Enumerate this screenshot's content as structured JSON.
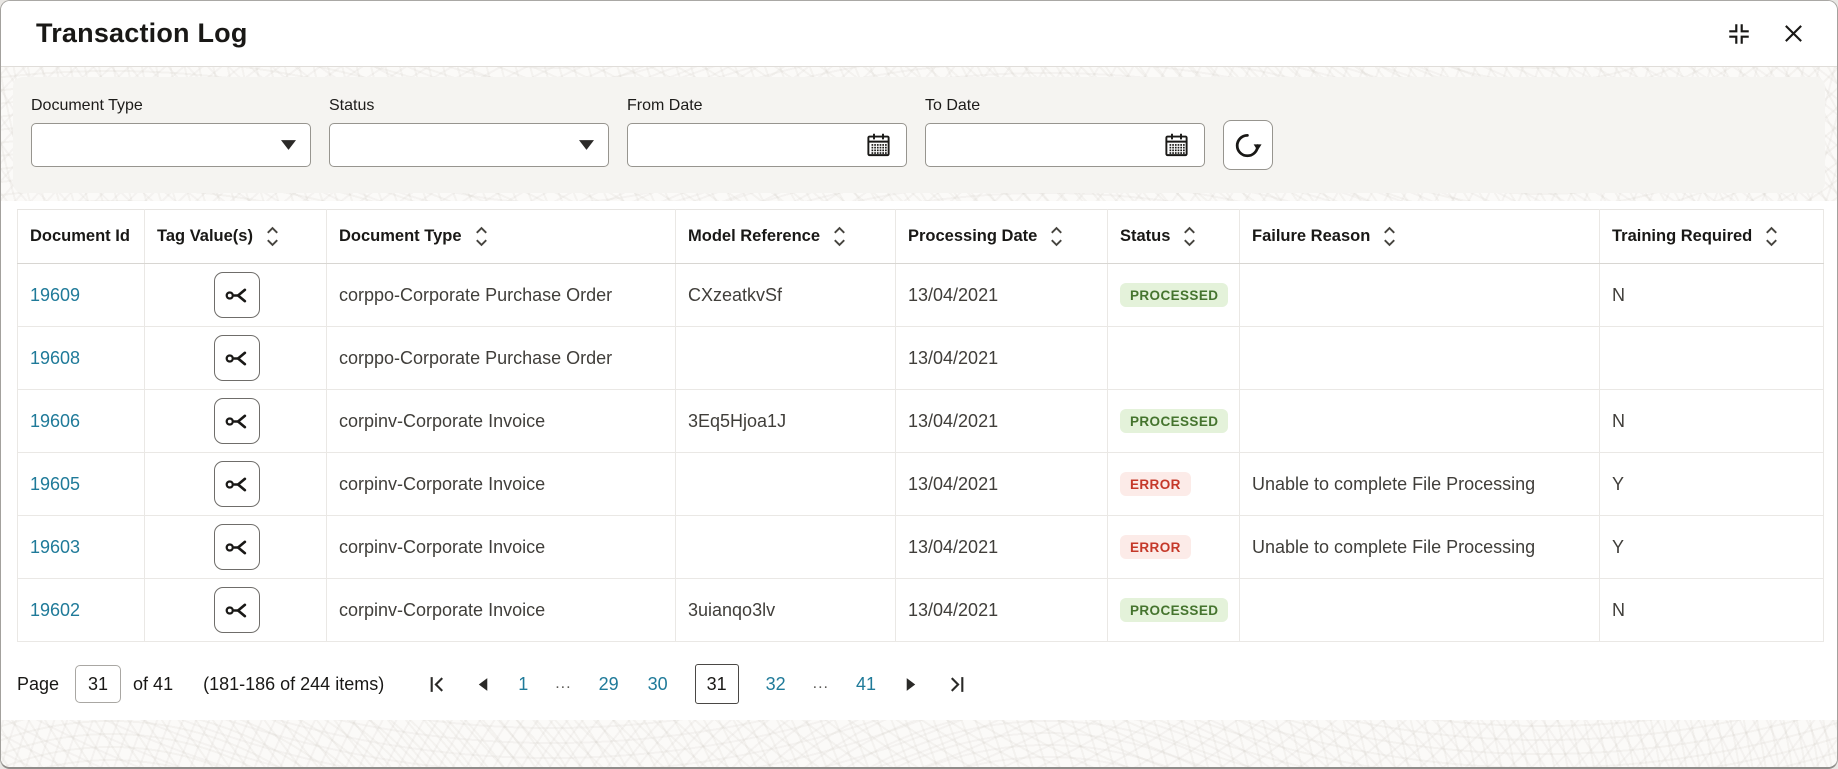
{
  "window": {
    "title": "Transaction Log"
  },
  "filters": {
    "fields": [
      {
        "label": "Document Type",
        "type": "select",
        "value": ""
      },
      {
        "label": "Status",
        "type": "select",
        "value": ""
      },
      {
        "label": "From Date",
        "type": "date",
        "value": ""
      },
      {
        "label": "To Date",
        "type": "date",
        "value": ""
      }
    ]
  },
  "table": {
    "columns": [
      {
        "label": "Document Id",
        "sortable": false
      },
      {
        "label": "Tag Value(s)",
        "sortable": true
      },
      {
        "label": "Document Type",
        "sortable": true
      },
      {
        "label": "Model Reference",
        "sortable": true
      },
      {
        "label": "Processing Date",
        "sortable": true
      },
      {
        "label": "Status",
        "sortable": true
      },
      {
        "label": "Failure Reason",
        "sortable": true
      },
      {
        "label": "Training Required",
        "sortable": true
      }
    ],
    "rows": [
      {
        "document_id": "19609",
        "document_type": "corppo-Corporate Purchase Order",
        "model_reference": "CXzeatkvSf",
        "processing_date": "13/04/2021",
        "status": "PROCESSED",
        "failure_reason": "",
        "training_required": "N"
      },
      {
        "document_id": "19608",
        "document_type": "corppo-Corporate Purchase Order",
        "model_reference": "",
        "processing_date": "13/04/2021",
        "status": "",
        "failure_reason": "",
        "training_required": ""
      },
      {
        "document_id": "19606",
        "document_type": "corpinv-Corporate Invoice",
        "model_reference": "3Eq5Hjoa1J",
        "processing_date": "13/04/2021",
        "status": "PROCESSED",
        "failure_reason": "",
        "training_required": "N"
      },
      {
        "document_id": "19605",
        "document_type": "corpinv-Corporate Invoice",
        "model_reference": "",
        "processing_date": "13/04/2021",
        "status": "ERROR",
        "failure_reason": "Unable to complete File Processing",
        "training_required": "Y"
      },
      {
        "document_id": "19603",
        "document_type": "corpinv-Corporate Invoice",
        "model_reference": "",
        "processing_date": "13/04/2021",
        "status": "ERROR",
        "failure_reason": "Unable to complete File Processing",
        "training_required": "Y"
      },
      {
        "document_id": "19602",
        "document_type": "corpinv-Corporate Invoice",
        "model_reference": "3uianqo3lv",
        "processing_date": "13/04/2021",
        "status": "PROCESSED",
        "failure_reason": "",
        "training_required": "N"
      }
    ]
  },
  "pagination": {
    "page_label": "Page",
    "page_input_value": "31",
    "total_label": "of 41",
    "items_label": "(181-186 of 244 items)",
    "pages": [
      "1",
      "...",
      "29",
      "30",
      "31",
      "32",
      "...",
      "41"
    ],
    "current_page": "31"
  },
  "status_badges": {
    "PROCESSED": {
      "bg": "#e4f2da",
      "text": "#45742e"
    },
    "ERROR": {
      "bg": "#fcebe8",
      "text": "#c53829"
    }
  },
  "colors": {
    "link": "#1f7a99",
    "text_primary": "#191816"
  },
  "icons": [
    "exit-fullscreen-icon",
    "close-icon",
    "chevron-down-icon",
    "calendar-icon",
    "refresh-icon",
    "tag-values-icon",
    "sort-icon",
    "first-page-icon",
    "previous-page-icon",
    "next-page-icon",
    "last-page-icon"
  ]
}
